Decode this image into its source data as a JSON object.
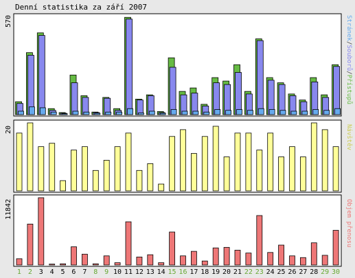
{
  "title": "Denní statistika za září 2007",
  "colors": {
    "background": "#e8e8e8",
    "panel": "#ffffff",
    "access": "#66bb44",
    "files": "#8888ee",
    "pages": "#66aaee",
    "visits": "#ffff99",
    "volume": "#ee7777",
    "weekend_label": "#66aa33"
  },
  "side_labels": {
    "top_access": "Přístupů",
    "top_files": "Souborů",
    "top_pages": "Stránek",
    "separator": "/",
    "middle": "Návštěv",
    "bottom": "Objem přenosu"
  },
  "chart_data": [
    {
      "type": "bar",
      "ymax_label": "570",
      "ylim": [
        0,
        570
      ],
      "categories": [
        "1",
        "2",
        "3",
        "4",
        "5",
        "6",
        "7",
        "8",
        "9",
        "10",
        "11",
        "12",
        "13",
        "14",
        "15",
        "16",
        "17",
        "18",
        "19",
        "20",
        "21",
        "22",
        "23",
        "24",
        "25",
        "26",
        "27",
        "28",
        "29",
        "30"
      ],
      "weekend_days": [
        "1",
        "2",
        "8",
        "9",
        "15",
        "16",
        "22",
        "23",
        "29",
        "30"
      ],
      "series": [
        {
          "name": "Přístupů",
          "values": [
            75,
            360,
            475,
            35,
            12,
            230,
            110,
            15,
            100,
            35,
            565,
            90,
            115,
            18,
            330,
            135,
            155,
            60,
            215,
            195,
            290,
            135,
            440,
            215,
            185,
            120,
            85,
            215,
            115,
            290
          ]
        },
        {
          "name": "Souborů",
          "values": [
            65,
            345,
            460,
            25,
            8,
            185,
            100,
            12,
            95,
            25,
            555,
            85,
            110,
            12,
            275,
            115,
            125,
            50,
            185,
            175,
            245,
            120,
            430,
            200,
            175,
            110,
            75,
            190,
            100,
            280
          ]
        },
        {
          "name": "Stránek",
          "values": [
            20,
            45,
            40,
            15,
            5,
            20,
            15,
            8,
            15,
            15,
            35,
            10,
            20,
            8,
            30,
            20,
            20,
            15,
            30,
            25,
            30,
            25,
            35,
            30,
            25,
            20,
            20,
            30,
            25,
            35
          ]
        }
      ]
    },
    {
      "type": "bar",
      "ymax_label": "20",
      "ylim": [
        0,
        20
      ],
      "categories": [
        "1",
        "2",
        "3",
        "4",
        "5",
        "6",
        "7",
        "8",
        "9",
        "10",
        "11",
        "12",
        "13",
        "14",
        "15",
        "16",
        "17",
        "18",
        "19",
        "20",
        "21",
        "22",
        "23",
        "24",
        "25",
        "26",
        "27",
        "28",
        "29",
        "30"
      ],
      "series": [
        {
          "name": "Návštěv",
          "values": [
            17,
            20,
            13,
            14,
            3,
            12,
            13,
            6,
            9,
            13,
            17,
            6,
            8,
            2,
            16,
            18,
            11,
            16,
            19,
            10,
            17,
            17,
            12,
            17,
            10,
            13,
            10,
            20,
            18,
            13
          ]
        }
      ]
    },
    {
      "type": "bar",
      "ymax_label": "11842",
      "ylim": [
        0,
        11842
      ],
      "categories": [
        "1",
        "2",
        "3",
        "4",
        "5",
        "6",
        "7",
        "8",
        "9",
        "10",
        "11",
        "12",
        "13",
        "14",
        "15",
        "16",
        "17",
        "18",
        "19",
        "20",
        "21",
        "22",
        "23",
        "24",
        "25",
        "26",
        "27",
        "28",
        "29",
        "30"
      ],
      "series": [
        {
          "name": "Objem přenosu",
          "values": [
            1100,
            7200,
            11842,
            150,
            200,
            3200,
            1900,
            200,
            1600,
            400,
            7600,
            1400,
            1800,
            400,
            5800,
            1600,
            2400,
            700,
            3000,
            3100,
            2600,
            2100,
            8700,
            2200,
            3500,
            1600,
            1300,
            3900,
            1700,
            6100
          ]
        }
      ]
    }
  ]
}
